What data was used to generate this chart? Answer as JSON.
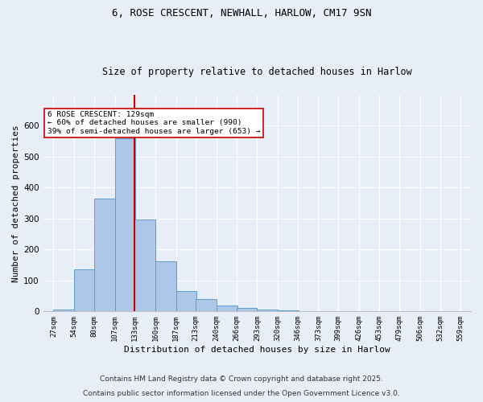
{
  "title1": "6, ROSE CRESCENT, NEWHALL, HARLOW, CM17 9SN",
  "title2": "Size of property relative to detached houses in Harlow",
  "xlabel": "Distribution of detached houses by size in Harlow",
  "ylabel": "Number of detached properties",
  "bar_edges": [
    27,
    54,
    80,
    107,
    133,
    160,
    187,
    213,
    240,
    266,
    293,
    320,
    346,
    373,
    399,
    426,
    453,
    479,
    506,
    532,
    559
  ],
  "bar_heights": [
    7,
    135,
    365,
    560,
    298,
    163,
    65,
    40,
    20,
    12,
    7,
    4,
    1,
    1,
    0,
    0,
    0,
    0,
    0,
    0
  ],
  "bar_color": "#aec6e8",
  "bar_edgecolor": "#5a9fd4",
  "bar_linewidth": 0.7,
  "vline_x": 133,
  "vline_color": "#cc0000",
  "vline_linewidth": 1.5,
  "annotation_text": "6 ROSE CRESCENT: 129sqm\n← 60% of detached houses are smaller (990)\n39% of semi-detached houses are larger (653) →",
  "annotation_boxcolor": "white",
  "annotation_boxedgecolor": "#cc0000",
  "annotation_fontsize": 6.8,
  "ylim": [
    0,
    700
  ],
  "yticks": [
    0,
    100,
    200,
    300,
    400,
    500,
    600
  ],
  "bg_color": "#e8eef8",
  "plot_bg_color": "#e8eef8",
  "footer1": "Contains HM Land Registry data © Crown copyright and database right 2025.",
  "footer2": "Contains public sector information licensed under the Open Government Licence v3.0.",
  "tick_labels": [
    "27sqm",
    "54sqm",
    "80sqm",
    "107sqm",
    "133sqm",
    "160sqm",
    "187sqm",
    "213sqm",
    "240sqm",
    "266sqm",
    "293sqm",
    "320sqm",
    "346sqm",
    "373sqm",
    "399sqm",
    "426sqm",
    "453sqm",
    "479sqm",
    "506sqm",
    "532sqm",
    "559sqm"
  ],
  "title_fontsize": 9,
  "title2_fontsize": 8.5,
  "axis_label_fontsize": 8,
  "tick_fontsize": 6.5,
  "footer_fontsize": 6.5,
  "grid_color": "white",
  "grid_linewidth": 0.8
}
